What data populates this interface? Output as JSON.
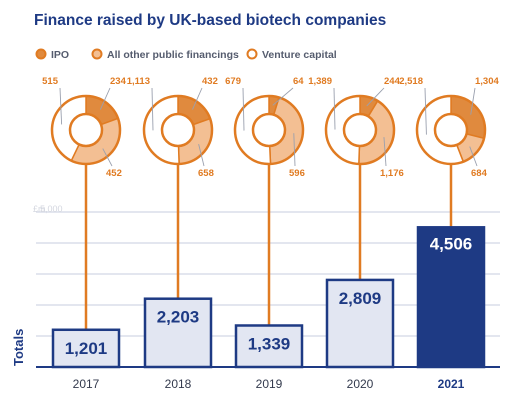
{
  "chart_data": {
    "type": "bar",
    "title": "Finance raised by UK-based biotech companies",
    "unit_label": "£m",
    "ylabel": "Totals",
    "ylim": [
      0,
      5000
    ],
    "ytick_label": "5,000",
    "categories": [
      "2017",
      "2018",
      "2019",
      "2020",
      "2021"
    ],
    "highlight_category": "2021",
    "totals": [
      1201,
      2203,
      1339,
      2809,
      4506
    ],
    "total_labels": [
      "1,201",
      "2,203",
      "1,339",
      "2,809",
      "4,506"
    ],
    "legend": [
      {
        "name": "IPO",
        "color": "#e08a3e"
      },
      {
        "name": "All other public financings",
        "color": "#f3bf93"
      },
      {
        "name": "Venture capital",
        "color": "#ffffff"
      }
    ],
    "breakdown_type": "donut",
    "breakdown_series": [
      "IPO",
      "All other public financings",
      "Venture capital"
    ],
    "breakdown": [
      {
        "year": "2017",
        "values": [
          234,
          452,
          515
        ],
        "labels": [
          "234",
          "452",
          "515"
        ]
      },
      {
        "year": "2018",
        "values": [
          432,
          658,
          1113
        ],
        "labels": [
          "432",
          "658",
          "1,113"
        ]
      },
      {
        "year": "2019",
        "values": [
          64,
          596,
          679
        ],
        "labels": [
          "64",
          "596",
          "679"
        ]
      },
      {
        "year": "2020",
        "values": [
          244,
          1176,
          1389
        ],
        "labels": [
          "244",
          "1,176",
          "1,389"
        ]
      },
      {
        "year": "2021",
        "values": [
          1304,
          684,
          2518
        ],
        "labels": [
          "1,304",
          "684",
          "2,518"
        ]
      }
    ],
    "colors": {
      "title": "#1e3a84",
      "accent": "#e07b22",
      "ipo": "#e08a3e",
      "other_public": "#f3bf93",
      "bar_fill": "#e2e6f2",
      "bar_highlight": "#1e3a84",
      "grid": "#e3e6ef"
    }
  }
}
